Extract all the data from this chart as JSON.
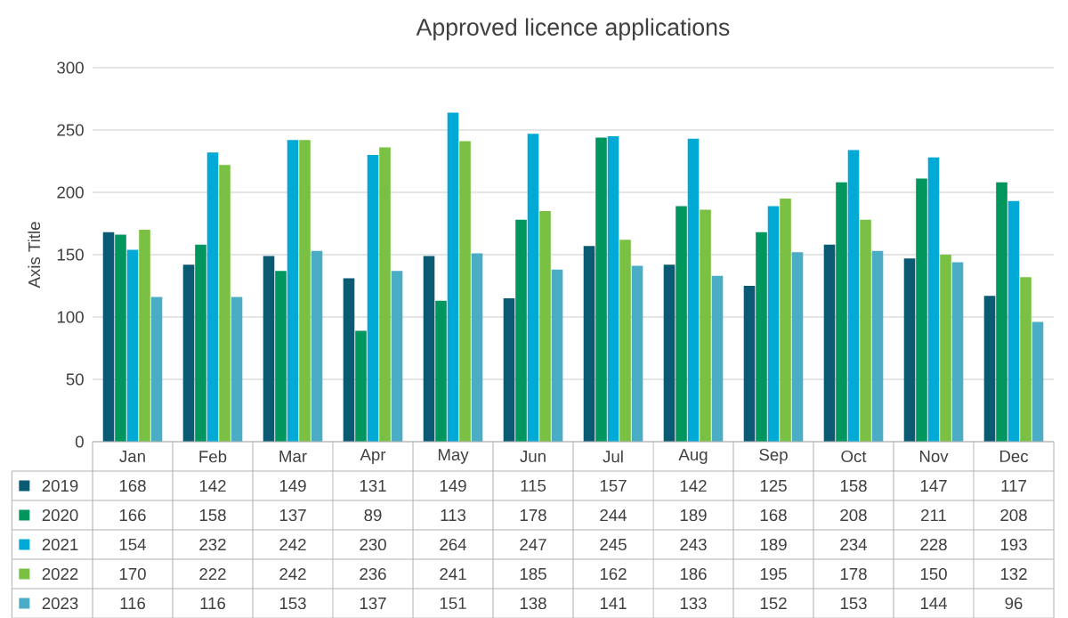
{
  "chart_data": {
    "type": "bar",
    "title": "Approved licence applications",
    "ylabel": "Axis Title",
    "categories": [
      "Jan",
      "Feb",
      "Mar",
      "Apr",
      "May",
      "Jun",
      "Jul",
      "Aug",
      "Sep",
      "Oct",
      "Nov",
      "Dec"
    ],
    "series": [
      {
        "name": "2019",
        "color": "#0b5a73",
        "values": [
          168,
          142,
          149,
          131,
          149,
          115,
          157,
          142,
          125,
          158,
          147,
          117
        ]
      },
      {
        "name": "2020",
        "color": "#00965e",
        "values": [
          166,
          158,
          137,
          89,
          113,
          178,
          244,
          189,
          168,
          208,
          211,
          208
        ]
      },
      {
        "name": "2021",
        "color": "#00a9d6",
        "values": [
          154,
          232,
          242,
          230,
          264,
          247,
          245,
          243,
          189,
          234,
          228,
          193
        ]
      },
      {
        "name": "2022",
        "color": "#7ac143",
        "values": [
          170,
          222,
          242,
          236,
          241,
          185,
          162,
          186,
          195,
          178,
          150,
          132
        ]
      },
      {
        "name": "2023",
        "color": "#4bacc6",
        "values": [
          116,
          116,
          153,
          137,
          151,
          138,
          141,
          133,
          152,
          153,
          144,
          96
        ]
      }
    ],
    "ylim": [
      0,
      300
    ],
    "yticks": [
      0,
      50,
      100,
      150,
      200,
      250,
      300
    ],
    "grid": "y",
    "data_labels": true,
    "legend": "bottom"
  }
}
